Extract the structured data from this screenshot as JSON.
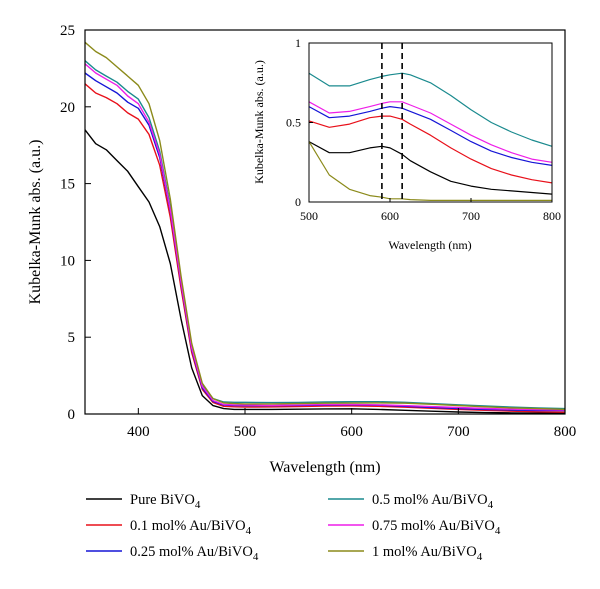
{
  "chart_data": [
    {
      "type": "line",
      "xlabel": "Wavelength (nm)",
      "ylabel": "Kubelka-Munk abs. (a.u.)",
      "xlim": [
        350,
        800
      ],
      "ylim": [
        0,
        25
      ],
      "xticks": [
        "400",
        "500",
        "600",
        "700",
        "800"
      ],
      "yticks": [
        "0",
        "5",
        "10",
        "15",
        "20",
        "25"
      ],
      "legend_placement": "bottom",
      "x": [
        350,
        360,
        370,
        380,
        390,
        400,
        410,
        420,
        430,
        440,
        450,
        460,
        470,
        480,
        490,
        500,
        525,
        550,
        575,
        600,
        625,
        650,
        675,
        700,
        725,
        750,
        775,
        800
      ],
      "series": [
        {
          "name": "Pure BiVO4",
          "name_main": "Pure BiVO",
          "name_sub": "4",
          "color": "#000000",
          "values": [
            18.5,
            17.6,
            17.2,
            16.5,
            15.8,
            14.8,
            13.8,
            12.2,
            9.8,
            6.2,
            3.0,
            1.2,
            0.55,
            0.35,
            0.3,
            0.3,
            0.3,
            0.31,
            0.33,
            0.34,
            0.3,
            0.24,
            0.18,
            0.13,
            0.09,
            0.07,
            0.06,
            0.05
          ]
        },
        {
          "name": "0.1 mol% Au/BiVO4",
          "name_main": "0.1 mol% Au/BiVO",
          "name_sub": "4",
          "color": "#e8101a",
          "values": [
            21.5,
            20.9,
            20.6,
            20.2,
            19.6,
            19.2,
            18.2,
            16.2,
            12.8,
            8.2,
            4.0,
            1.6,
            0.75,
            0.5,
            0.47,
            0.45,
            0.46,
            0.49,
            0.52,
            0.53,
            0.5,
            0.44,
            0.37,
            0.3,
            0.24,
            0.18,
            0.14,
            0.12
          ]
        },
        {
          "name": "0.25 mol% Au/BiVO4",
          "name_main": "0.25 mol% Au/BiVO",
          "name_sub": "4",
          "color": "#1515d6",
          "values": [
            22.2,
            21.7,
            21.3,
            20.9,
            20.3,
            19.9,
            18.8,
            16.7,
            13.2,
            8.5,
            4.2,
            1.7,
            0.82,
            0.58,
            0.55,
            0.54,
            0.54,
            0.56,
            0.58,
            0.59,
            0.57,
            0.5,
            0.43,
            0.36,
            0.3,
            0.26,
            0.23,
            0.22
          ]
        },
        {
          "name": "0.5 mol% Au/BiVO4",
          "name_main": "0.5 mol% Au/BiVO",
          "name_sub": "4",
          "color": "#1a8a8e",
          "values": [
            23.0,
            22.4,
            22.0,
            21.6,
            21.0,
            20.5,
            19.3,
            17.1,
            13.5,
            8.7,
            4.4,
            1.9,
            1.0,
            0.78,
            0.76,
            0.76,
            0.74,
            0.75,
            0.78,
            0.8,
            0.8,
            0.76,
            0.68,
            0.6,
            0.52,
            0.45,
            0.39,
            0.35
          ]
        },
        {
          "name": "0.75 mol% Au/BiVO4",
          "name_main": "0.75 mol% Au/BiVO",
          "name_sub": "4",
          "color": "#ee1ee8",
          "values": [
            22.8,
            22.2,
            21.8,
            21.4,
            20.7,
            20.2,
            19.0,
            16.9,
            13.3,
            8.6,
            4.3,
            1.8,
            0.88,
            0.62,
            0.59,
            0.58,
            0.56,
            0.59,
            0.61,
            0.62,
            0.6,
            0.55,
            0.48,
            0.42,
            0.36,
            0.31,
            0.28,
            0.26
          ]
        },
        {
          "name": "1 mol% Au/BiVO4",
          "name_main": "1 mol% Au/BiVO",
          "name_sub": "4",
          "color": "#8b8a1a",
          "values": [
            24.2,
            23.6,
            23.2,
            22.6,
            22.0,
            21.4,
            20.2,
            17.8,
            14.0,
            9.0,
            4.6,
            2.0,
            1.0,
            0.72,
            0.68,
            0.66,
            0.66,
            0.68,
            0.7,
            0.71,
            0.72,
            0.7,
            0.63,
            0.55,
            0.47,
            0.4,
            0.35,
            0.3
          ]
        }
      ]
    },
    {
      "type": "line",
      "xlabel": "Wavelength (nm)",
      "ylabel": "Kubelka-Munk abs. (a.u.)",
      "xlim": [
        500,
        800
      ],
      "ylim": [
        0,
        1
      ],
      "xticks": [
        "500",
        "600",
        "700",
        "800"
      ],
      "yticks": [
        "0",
        "0.5",
        "1"
      ],
      "vlines": [
        590,
        615
      ],
      "x": [
        500,
        525,
        550,
        575,
        590,
        600,
        615,
        625,
        650,
        675,
        700,
        725,
        750,
        775,
        800
      ],
      "series": [
        {
          "name": "Pure BiVO4",
          "color": "#000000",
          "values": [
            0.38,
            0.31,
            0.31,
            0.34,
            0.35,
            0.34,
            0.3,
            0.26,
            0.19,
            0.13,
            0.1,
            0.08,
            0.07,
            0.06,
            0.05
          ]
        },
        {
          "name": "0.1 mol% Au/BiVO4",
          "color": "#e8101a",
          "values": [
            0.51,
            0.47,
            0.49,
            0.53,
            0.54,
            0.54,
            0.52,
            0.49,
            0.42,
            0.34,
            0.27,
            0.21,
            0.17,
            0.14,
            0.12
          ]
        },
        {
          "name": "0.25 mol% Au/BiVO4",
          "color": "#1515d6",
          "values": [
            0.6,
            0.53,
            0.54,
            0.57,
            0.59,
            0.6,
            0.59,
            0.57,
            0.52,
            0.45,
            0.38,
            0.32,
            0.28,
            0.25,
            0.23
          ]
        },
        {
          "name": "0.5 mol% Au/BiVO4",
          "color": "#1a8a8e",
          "values": [
            0.81,
            0.73,
            0.73,
            0.77,
            0.79,
            0.8,
            0.81,
            0.8,
            0.75,
            0.67,
            0.58,
            0.5,
            0.44,
            0.39,
            0.35
          ]
        },
        {
          "name": "0.75 mol% Au/BiVO4",
          "color": "#ee1ee8",
          "values": [
            0.63,
            0.56,
            0.57,
            0.6,
            0.62,
            0.63,
            0.63,
            0.61,
            0.56,
            0.49,
            0.42,
            0.36,
            0.31,
            0.27,
            0.25
          ]
        },
        {
          "name": "1 mol% Au/BiVO4",
          "color": "#8b8a1a",
          "values": [
            0.38,
            0.17,
            0.08,
            0.04,
            0.03,
            0.02,
            0.02,
            0.015,
            0.01,
            0.01,
            0.01,
            0.01,
            0.01,
            0.01,
            0.01
          ]
        }
      ]
    }
  ]
}
